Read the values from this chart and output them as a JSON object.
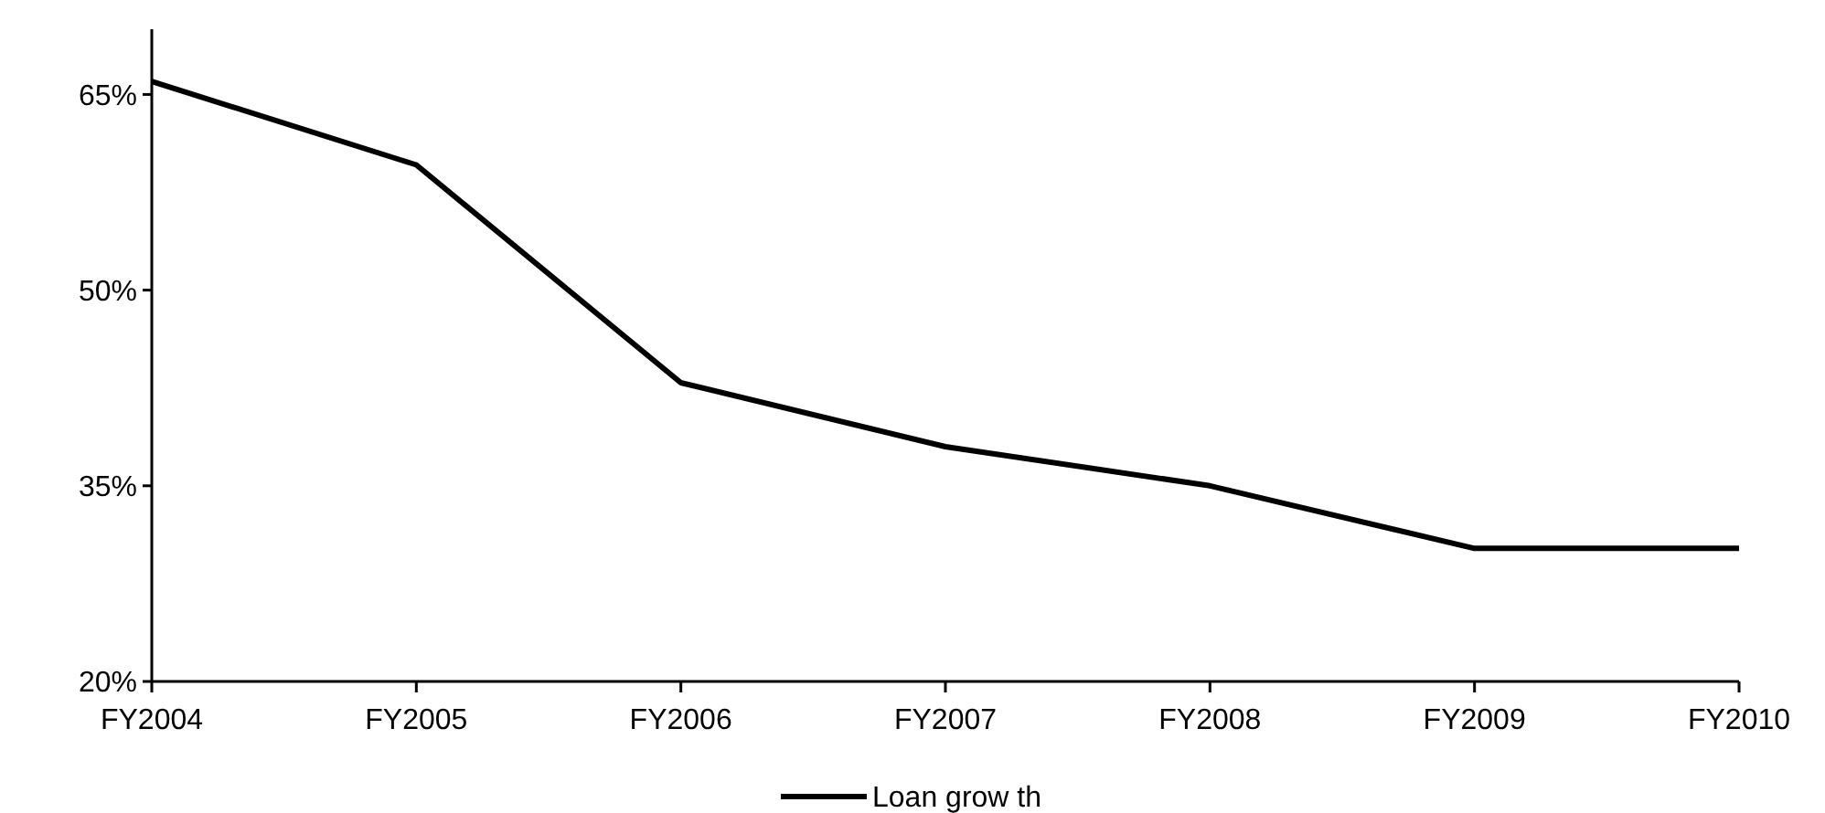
{
  "chart_data": {
    "type": "line",
    "categories": [
      "FY2004",
      "FY2005",
      "FY2006",
      "FY2007",
      "FY2008",
      "FY2009",
      "FY2010"
    ],
    "series": [
      {
        "name": "Loan grow th",
        "color": "#000000",
        "values": [
          66,
          59.6,
          42.9,
          38,
          35,
          30.2,
          30.2
        ]
      }
    ],
    "ylim": [
      20,
      70
    ],
    "yticks": [
      {
        "value": 20,
        "label": "20%"
      },
      {
        "value": 35,
        "label": "35%"
      },
      {
        "value": 50,
        "label": "50%"
      },
      {
        "value": 65,
        "label": "65%"
      }
    ],
    "legend": "bottom",
    "grid": false,
    "marker": "none",
    "line_style": "solid"
  }
}
